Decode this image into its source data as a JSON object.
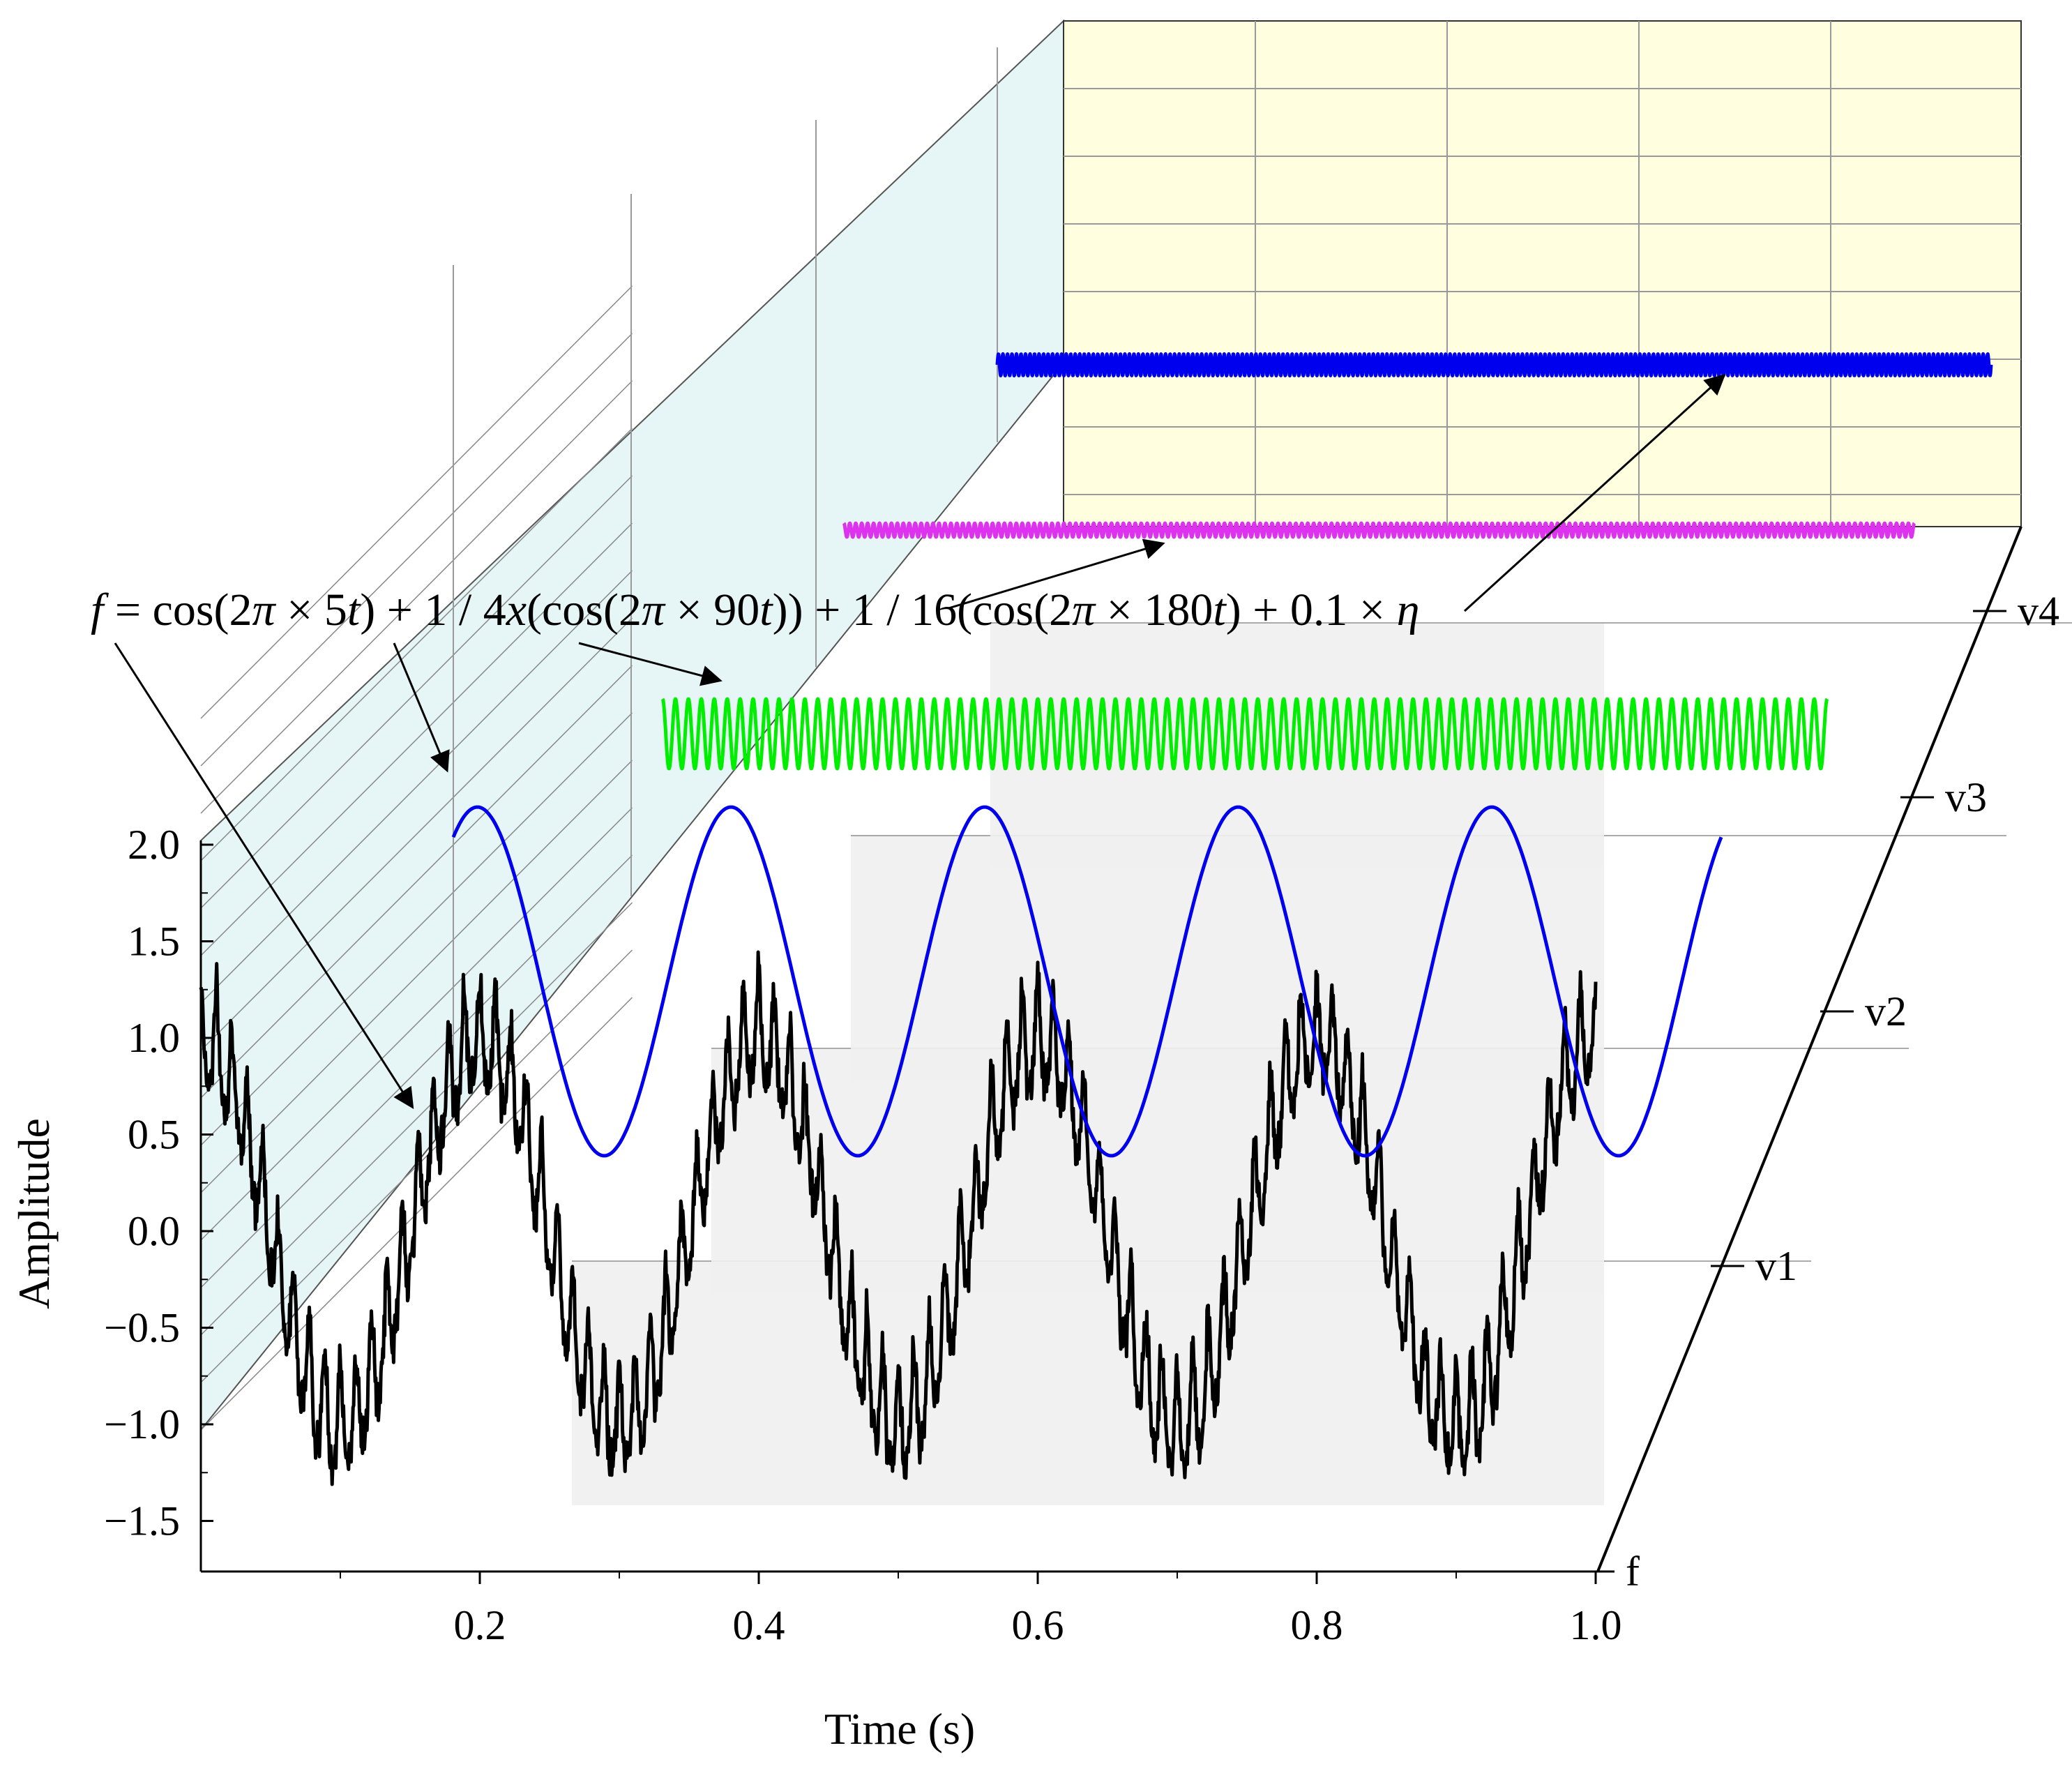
{
  "chart_data": {
    "type": "line",
    "projection": "3d-waterfall",
    "xlabel": "Time (s)",
    "ylabel": "Amplitude",
    "zlabel": "f",
    "xlim": [
      0,
      1
    ],
    "ylim": [
      -1.5,
      2.0
    ],
    "x_ticks": [
      "0.2",
      "0.4",
      "0.6",
      "0.8",
      "1.0"
    ],
    "y_ticks": [
      "2.0",
      "1.5",
      "1.0",
      "0.5",
      "0.0",
      "−0.5",
      "−1.0",
      "−1.5"
    ],
    "z_ticks": [
      "v1",
      "v2",
      "v3",
      "v4"
    ],
    "annotation": {
      "parts": [
        {
          "t": "f",
          "i": true
        },
        {
          "t": " = cos(2",
          "i": false
        },
        {
          "t": "π",
          "i": true
        },
        {
          "t": " × 5",
          "i": false
        },
        {
          "t": "t",
          "i": true
        },
        {
          "t": ") + 1 / 4",
          "i": false
        },
        {
          "t": "x",
          "i": true
        },
        {
          "t": "(cos(2",
          "i": false
        },
        {
          "t": "π",
          "i": true
        },
        {
          "t": " × 90",
          "i": false
        },
        {
          "t": "t",
          "i": true
        },
        {
          "t": ")) + 1 / 16(cos(2",
          "i": false
        },
        {
          "t": "π",
          "i": true
        },
        {
          "t": " × 180",
          "i": false
        },
        {
          "t": "t",
          "i": true
        },
        {
          "t": ") + 0.1 × ",
          "i": false
        },
        {
          "t": "η",
          "i": true
        }
      ]
    },
    "series": [
      {
        "level": "f",
        "color": "#000000",
        "components": [
          {
            "a": 1.0,
            "f": 5,
            "p": 0
          },
          {
            "a": 0.25,
            "f": 90,
            "p": 0
          },
          {
            "a": 0.0625,
            "f": 180,
            "p": 0
          }
        ],
        "noise": 0.1
      },
      {
        "level": "v1",
        "color": "#0000ee",
        "components": [
          {
            "a": 1.0,
            "f": 5,
            "p": 0
          }
        ]
      },
      {
        "level": "v2",
        "color": "#00ee00",
        "components": [
          {
            "a": 0.25,
            "f": 90,
            "p": 0
          }
        ]
      },
      {
        "level": "v3",
        "color": "#dd33ee",
        "components": [
          {
            "a": 0.0625,
            "f": 180,
            "p": 0
          }
        ]
      },
      {
        "level": "v4",
        "color": "#0000ee",
        "components": [],
        "noise": 0.1
      }
    ],
    "colors": {
      "wall_side": "#e6f6f6",
      "wall_back": "#ffffe0",
      "floor": "#f0f0f0"
    }
  }
}
